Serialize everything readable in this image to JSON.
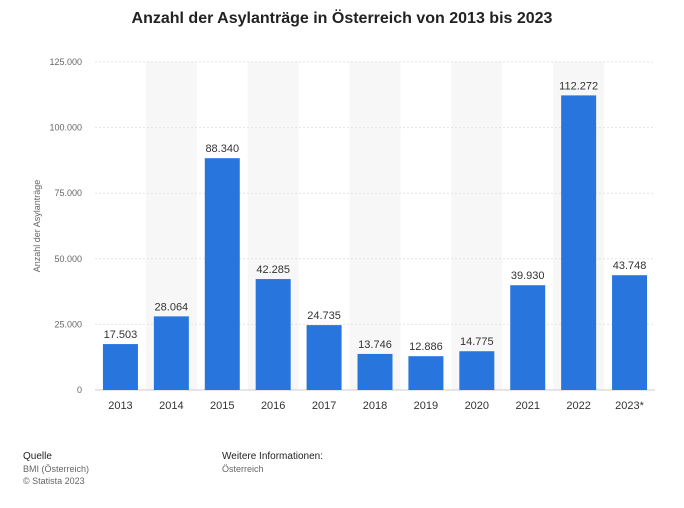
{
  "chart_data": {
    "type": "bar",
    "title": "Anzahl der Asylanträge in Österreich von 2013 bis 2023",
    "ylabel": "Anzahl der Asylanträge",
    "xlabel": "",
    "categories": [
      "2013",
      "2014",
      "2015",
      "2016",
      "2017",
      "2018",
      "2019",
      "2020",
      "2021",
      "2022",
      "2023*"
    ],
    "values": [
      17503,
      28064,
      88340,
      42285,
      24735,
      13746,
      12886,
      14775,
      39930,
      112272,
      43748
    ],
    "value_labels": [
      "17.503",
      "28.064",
      "88.340",
      "42.285",
      "24.735",
      "13.746",
      "12.886",
      "14.775",
      "39.930",
      "112.272",
      "43.748"
    ],
    "ylim": [
      0,
      125000
    ],
    "yticks": [
      0,
      25000,
      50000,
      75000,
      100000,
      125000
    ],
    "ytick_labels": [
      "0",
      "25.000",
      "50.000",
      "75.000",
      "100.000",
      "125.000"
    ],
    "grid": true,
    "bar_color": "#2876dd"
  },
  "footer": {
    "source_heading": "Quelle",
    "source_lines": [
      "BMI (Österreich)",
      "© Statista 2023"
    ],
    "info_heading": "Weitere Informationen:",
    "info_lines": [
      "Österreich"
    ]
  }
}
